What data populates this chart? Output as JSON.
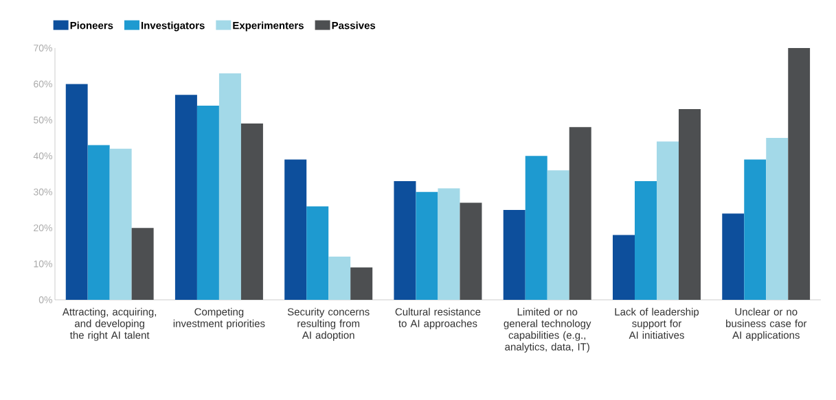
{
  "chart_data": {
    "type": "bar",
    "categories": [
      "Attracting, acquiring, and developing the right AI talent",
      "Competing investment priorities",
      "Security concerns resulting from AI adoption",
      "Cultural resistance to AI approaches",
      "Limited or no general technology capabilities (e.g., analytics, data, IT)",
      "Lack of leadership support for AI initiatives",
      "Unclear or no business case for AI applications"
    ],
    "series": [
      {
        "name": "Pioneers",
        "color": "#0d4f9c",
        "values": [
          60,
          57,
          39,
          33,
          25,
          18,
          24
        ]
      },
      {
        "name": "Investigators",
        "color": "#1e9ad0",
        "values": [
          43,
          54,
          26,
          30,
          40,
          33,
          39
        ]
      },
      {
        "name": "Experimenters",
        "color": "#a3d9e8",
        "values": [
          42,
          63,
          12,
          31,
          36,
          44,
          45
        ]
      },
      {
        "name": "Passives",
        "color": "#4d4f51",
        "values": [
          20,
          49,
          9,
          27,
          48,
          53,
          70
        ]
      }
    ],
    "ylim": [
      0,
      70
    ],
    "yticks": [
      {
        "value": 0,
        "label": "0%"
      },
      {
        "value": 10,
        "label": "10%"
      },
      {
        "value": 20,
        "label": "20%"
      },
      {
        "value": 30,
        "label": "30%"
      },
      {
        "value": 40,
        "label": "40%"
      },
      {
        "value": 50,
        "label": "50%"
      },
      {
        "value": 60,
        "label": "60%"
      },
      {
        "value": 70,
        "label": "70%"
      }
    ],
    "grid": false,
    "legend": "top left"
  }
}
